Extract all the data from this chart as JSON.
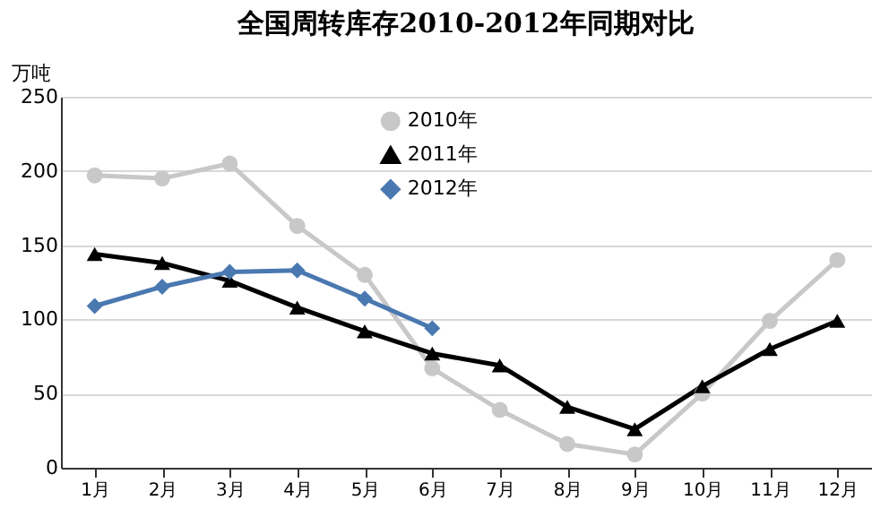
{
  "chart_data": {
    "type": "line",
    "title": "全国周转库存2010-2012年同期对比",
    "ylabel": "万吨",
    "categories": [
      "1月",
      "2月",
      "3月",
      "4月",
      "5月",
      "6月",
      "7月",
      "8月",
      "9月",
      "10月",
      "11月",
      "12月"
    ],
    "series": [
      {
        "name": "2010年",
        "color": "#c8c8c8",
        "marker": "circle",
        "values": [
          197,
          195,
          205,
          163,
          130,
          67,
          39,
          16,
          9,
          50,
          99,
          140
        ]
      },
      {
        "name": "2011年",
        "color": "#000000",
        "marker": "triangle",
        "values": [
          144,
          138,
          126,
          108,
          92,
          77,
          69,
          41,
          26,
          55,
          80,
          99
        ]
      },
      {
        "name": "2012年",
        "color": "#4a78b0",
        "marker": "diamond",
        "values": [
          109,
          122,
          132,
          133,
          114,
          94,
          null,
          null,
          null,
          null,
          null,
          null
        ]
      }
    ],
    "ylim": [
      0,
      250
    ],
    "yticks": [
      0,
      50,
      100,
      150,
      200,
      250
    ],
    "grid": "y",
    "legend": "top"
  }
}
